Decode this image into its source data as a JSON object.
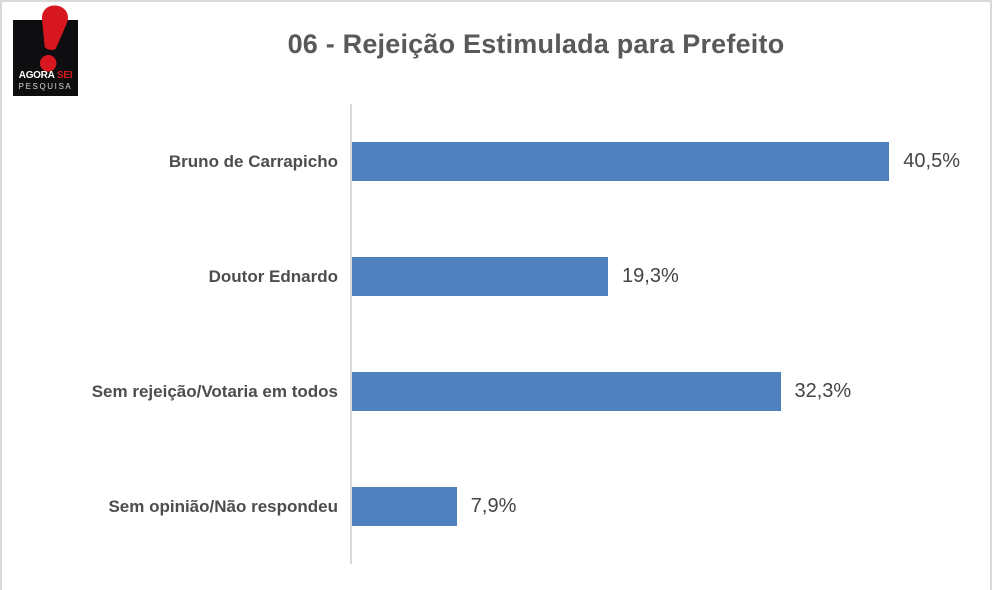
{
  "logo": {
    "line1_part1": "AGORA",
    "line1_part2": "SEI",
    "line2": "PESQUISA",
    "exclamation_color": "#d7171f",
    "box_color": "#0e0d0f"
  },
  "chart_data": {
    "type": "bar",
    "orientation": "horizontal",
    "title": "06 - Rejeição Estimulada para Prefeito",
    "categories": [
      "Bruno de Carrapicho",
      "Doutor Ednardo",
      "Sem rejeição/Votaria em todos",
      "Sem opinião/Não respondeu"
    ],
    "values": [
      40.5,
      19.3,
      32.3,
      7.9
    ],
    "value_labels": [
      "40,5%",
      "19,3%",
      "32,3%",
      "7,9%"
    ],
    "xlim": [
      0,
      45
    ],
    "bar_color": "#4e81bd",
    "axis_line_color": "#d9d9d9",
    "grid": false,
    "legend": false
  }
}
